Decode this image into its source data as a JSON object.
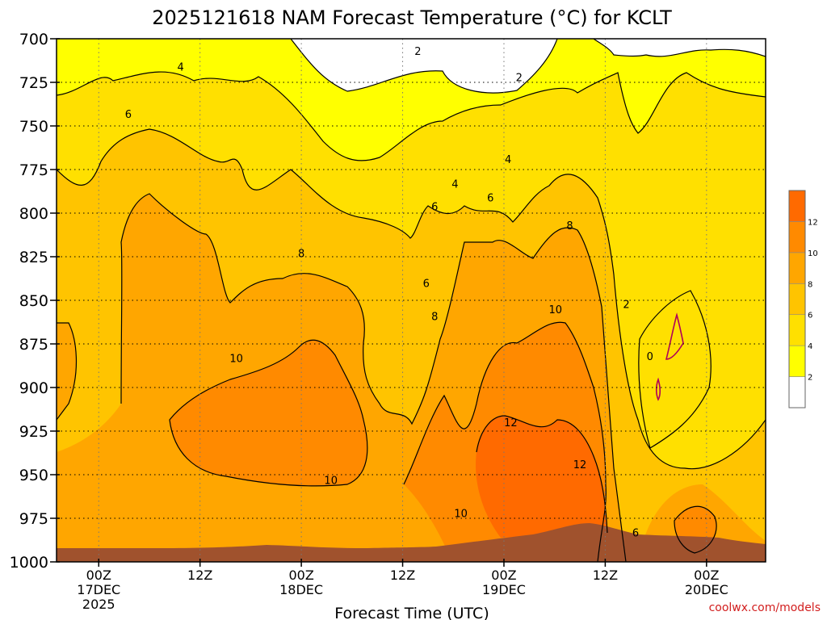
{
  "chart_data": {
    "type": "heatmap",
    "title": "2025121618 NAM Forecast Temperature (°C) for KCLT",
    "xlabel": "Forecast Time (UTC)",
    "credit": "coolwx.com/models",
    "y_axis": {
      "ticks": [
        700,
        725,
        750,
        775,
        800,
        825,
        850,
        875,
        900,
        925,
        950,
        975,
        1000
      ],
      "range": [
        700,
        1000
      ],
      "inverted": true
    },
    "x_axis": {
      "range_hours": [
        -5,
        79
      ],
      "ticks": [
        {
          "hour": 0,
          "label": "00Z",
          "sub": "17DEC",
          "sub2": "2025"
        },
        {
          "hour": 12,
          "label": "12Z",
          "sub": "",
          "sub2": ""
        },
        {
          "hour": 24,
          "label": "00Z",
          "sub": "18DEC",
          "sub2": ""
        },
        {
          "hour": 36,
          "label": "12Z",
          "sub": "",
          "sub2": ""
        },
        {
          "hour": 48,
          "label": "00Z",
          "sub": "19DEC",
          "sub2": ""
        },
        {
          "hour": 60,
          "label": "12Z",
          "sub": "",
          "sub2": ""
        },
        {
          "hour": 72,
          "label": "00Z",
          "sub": "20DEC",
          "sub2": ""
        }
      ]
    },
    "grid": true,
    "legend": {
      "placement": "right",
      "levels": [
        2,
        4,
        6,
        8,
        10,
        12
      ],
      "colors": [
        "#ffffff",
        "#ffff00",
        "#ffe000",
        "#ffc400",
        "#ffa600",
        "#ff8a00",
        "#ff6a00"
      ]
    },
    "colors": {
      "surface": "#a0522d",
      "line": "#000000",
      "freezing": "#b0005a"
    },
    "contour_labels": [
      {
        "hour": 9.7,
        "p": 716,
        "text": "4"
      },
      {
        "hour": 3.5,
        "p": 743,
        "text": "6"
      },
      {
        "hour": 37.8,
        "p": 707,
        "text": "2"
      },
      {
        "hour": 49.8,
        "p": 722,
        "text": "2"
      },
      {
        "hour": 48.5,
        "p": 769,
        "text": "4"
      },
      {
        "hour": 42.2,
        "p": 783,
        "text": "4"
      },
      {
        "hour": 39.8,
        "p": 796,
        "text": "6"
      },
      {
        "hour": 46.4,
        "p": 791,
        "text": "6"
      },
      {
        "hour": 38.8,
        "p": 840,
        "text": "6"
      },
      {
        "hour": 24.0,
        "p": 823,
        "text": "8"
      },
      {
        "hour": 39.8,
        "p": 859,
        "text": "8"
      },
      {
        "hour": 55.8,
        "p": 807,
        "text": "8"
      },
      {
        "hour": 16.3,
        "p": 883,
        "text": "10"
      },
      {
        "hour": 27.5,
        "p": 953,
        "text": "10"
      },
      {
        "hour": 42.9,
        "p": 972,
        "text": "10"
      },
      {
        "hour": 54.1,
        "p": 855,
        "text": "10"
      },
      {
        "hour": 48.8,
        "p": 920,
        "text": "12"
      },
      {
        "hour": 57.0,
        "p": 944,
        "text": "12"
      },
      {
        "hour": 62.5,
        "p": 852,
        "text": "2"
      },
      {
        "hour": 65.3,
        "p": 882,
        "text": "0"
      },
      {
        "hour": 63.6,
        "p": 983,
        "text": "6"
      }
    ]
  }
}
